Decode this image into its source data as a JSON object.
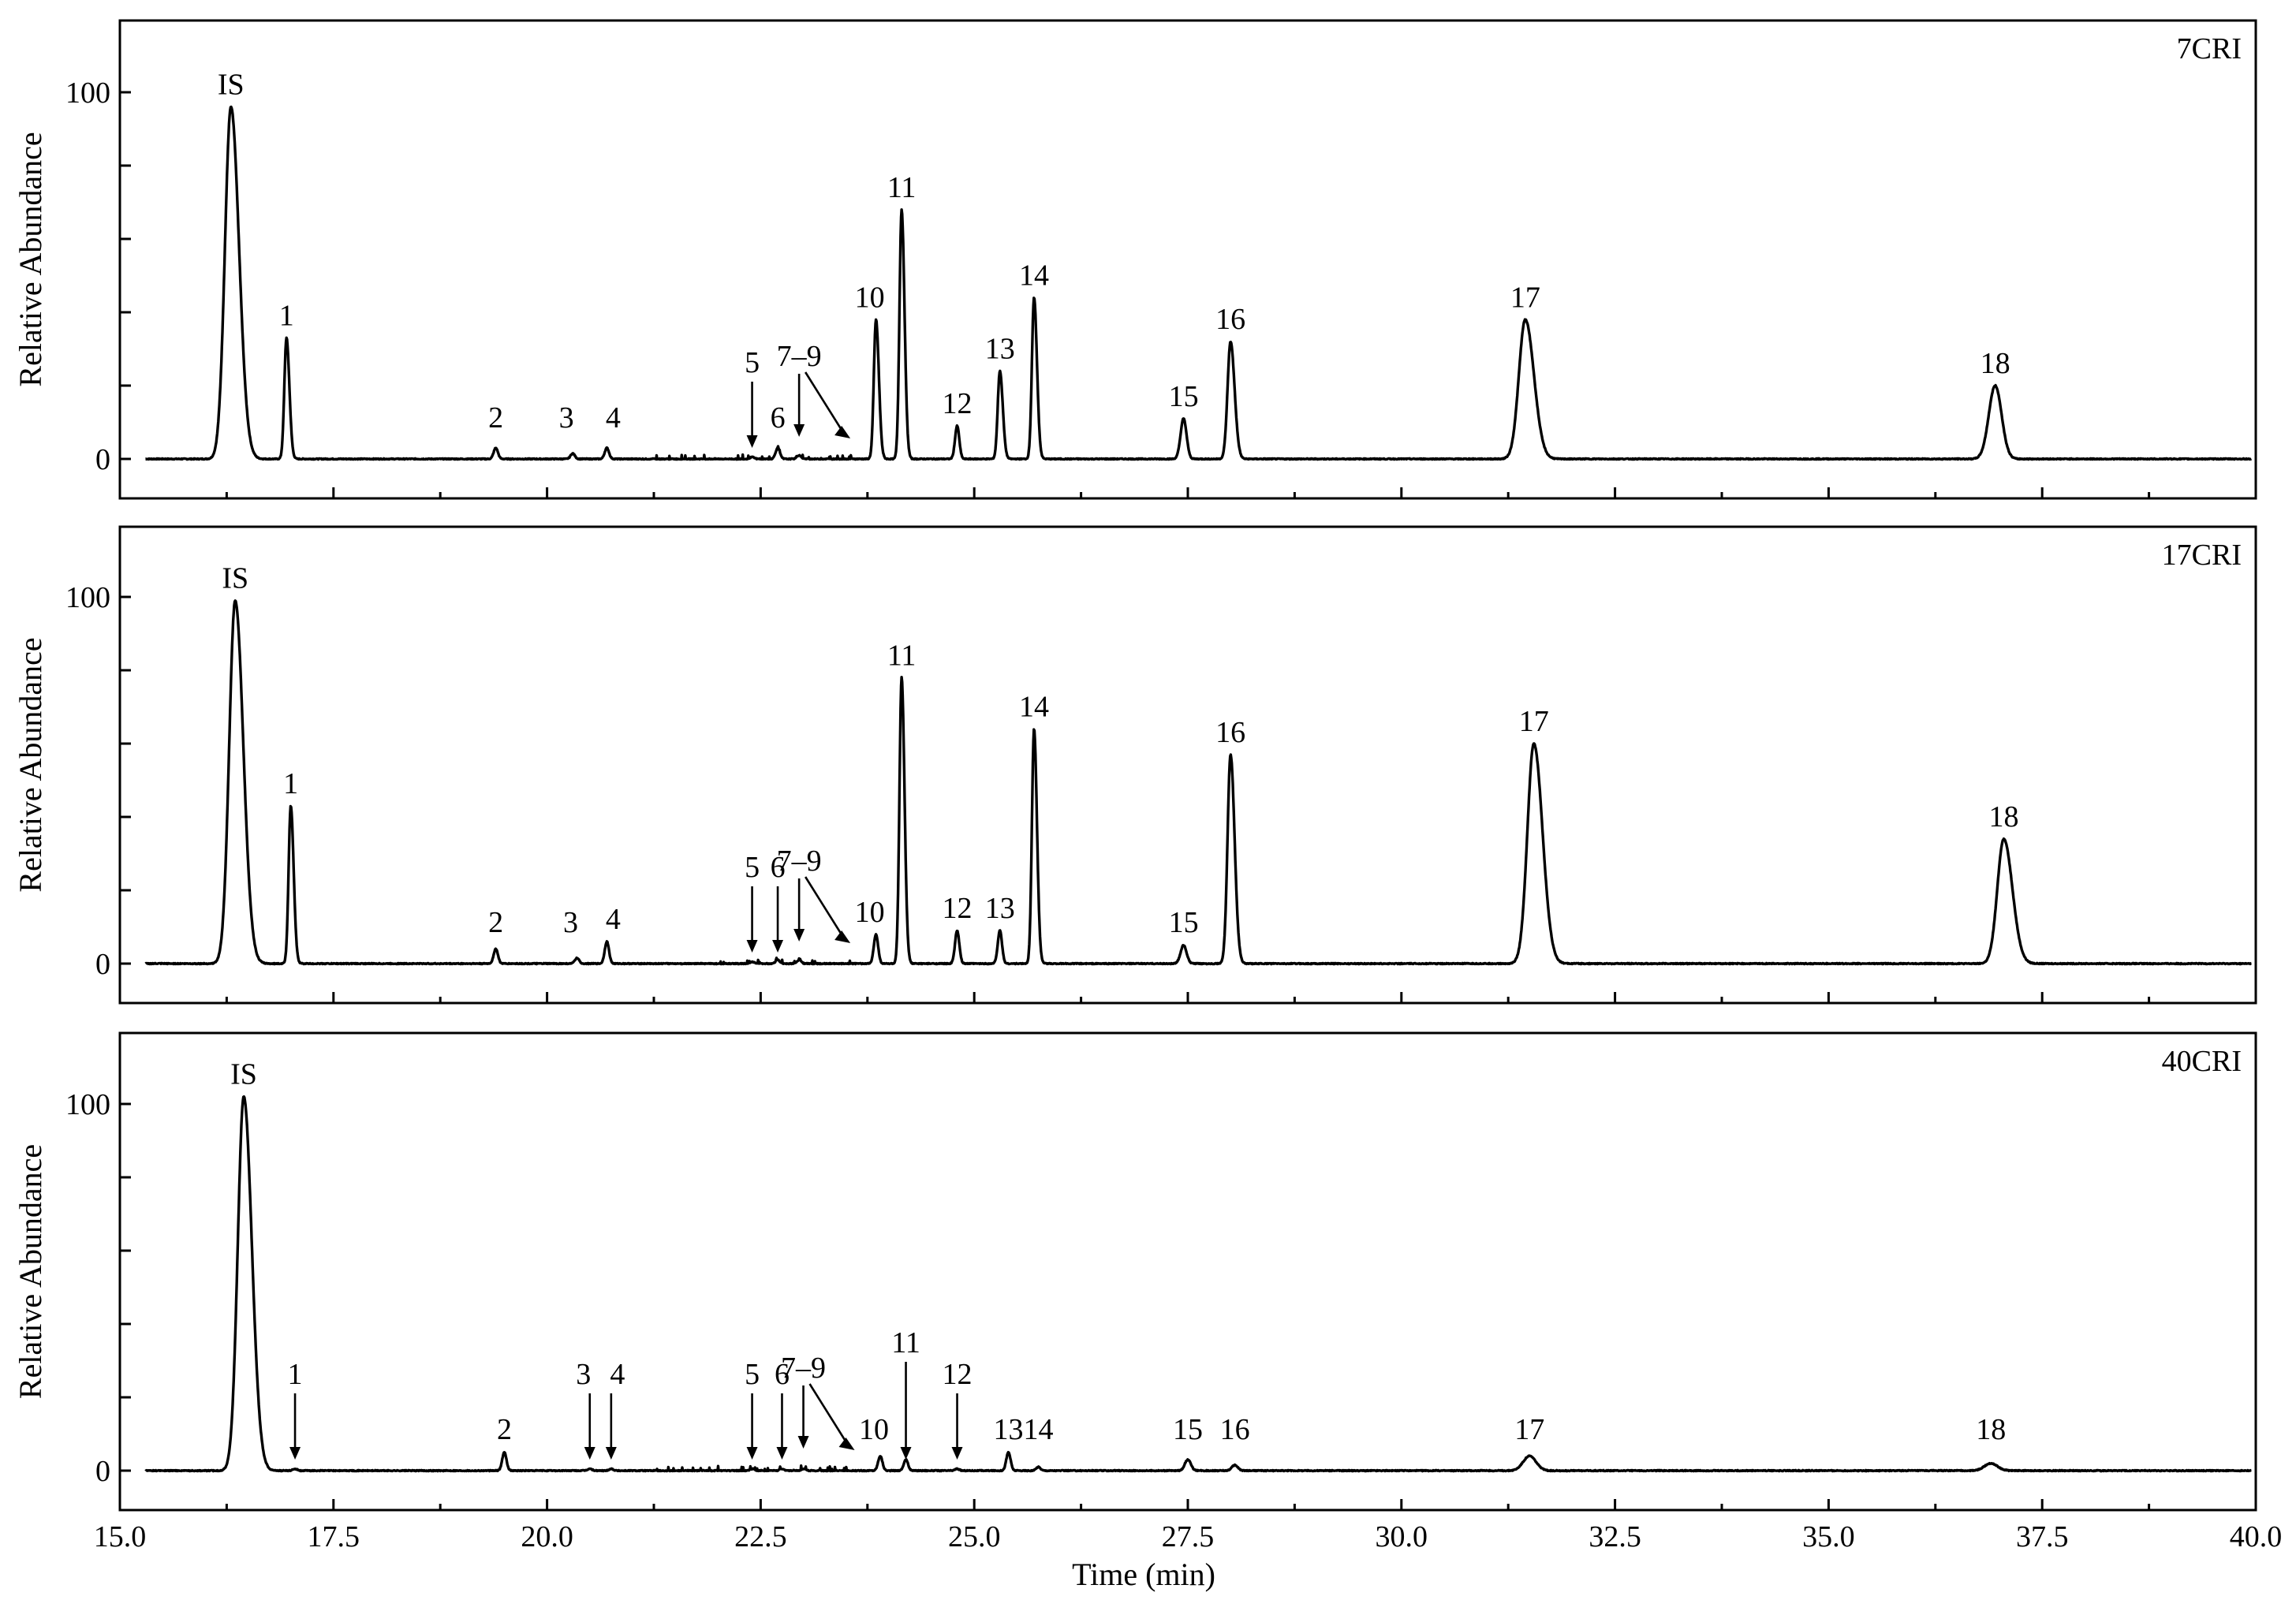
{
  "chart_data": {
    "type": "line",
    "x": {
      "label": "Time (min)",
      "range": [
        15.0,
        40.0
      ],
      "ticks": [
        "15.0",
        "17.5",
        "20.0",
        "22.5",
        "25.0",
        "27.5",
        "30.0",
        "32.5",
        "35.0",
        "37.5",
        "40.0"
      ]
    },
    "y": {
      "label": "Relative Abundance",
      "range": [
        0,
        120
      ],
      "ticks": [
        "0",
        "100"
      ]
    },
    "panels": [
      {
        "name": "7CRI",
        "peaks": [
          {
            "label": "IS",
            "rt": 16.3,
            "height": 96
          },
          {
            "label": "1",
            "rt": 16.95,
            "height": 33
          },
          {
            "label": "2",
            "rt": 19.4,
            "height": 3
          },
          {
            "label": "3",
            "rt": 20.3,
            "height": 1.5
          },
          {
            "label": "4",
            "rt": 20.7,
            "height": 3
          },
          {
            "label": "5",
            "rt": 22.4,
            "height": 0.5,
            "arrow": true
          },
          {
            "label": "6",
            "rt": 22.7,
            "height": 3
          },
          {
            "label": "7–9",
            "rt": 22.95,
            "height": 1,
            "arrow": true
          },
          {
            "label": "10",
            "rt": 23.85,
            "height": 38
          },
          {
            "label": "11",
            "rt": 24.15,
            "height": 68
          },
          {
            "label": "12",
            "rt": 24.8,
            "height": 9
          },
          {
            "label": "13",
            "rt": 25.3,
            "height": 24
          },
          {
            "label": "14",
            "rt": 25.7,
            "height": 44
          },
          {
            "label": "15",
            "rt": 27.45,
            "height": 11
          },
          {
            "label": "16",
            "rt": 28.0,
            "height": 32
          },
          {
            "label": "17",
            "rt": 31.45,
            "height": 38
          },
          {
            "label": "18",
            "rt": 36.95,
            "height": 20
          }
        ]
      },
      {
        "name": "17CRI",
        "peaks": [
          {
            "label": "IS",
            "rt": 16.35,
            "height": 99
          },
          {
            "label": "1",
            "rt": 17.0,
            "height": 43
          },
          {
            "label": "2",
            "rt": 19.4,
            "height": 4
          },
          {
            "label": "3",
            "rt": 20.35,
            "height": 1.5
          },
          {
            "label": "4",
            "rt": 20.7,
            "height": 6
          },
          {
            "label": "5",
            "rt": 22.4,
            "height": 0.5,
            "arrow": true
          },
          {
            "label": "6",
            "rt": 22.7,
            "height": 1,
            "arrow": true
          },
          {
            "label": "7–9",
            "rt": 22.95,
            "height": 1,
            "arrow": true
          },
          {
            "label": "10",
            "rt": 23.85,
            "height": 8
          },
          {
            "label": "11",
            "rt": 24.15,
            "height": 78
          },
          {
            "label": "12",
            "rt": 24.8,
            "height": 9
          },
          {
            "label": "13",
            "rt": 25.3,
            "height": 9
          },
          {
            "label": "14",
            "rt": 25.7,
            "height": 64
          },
          {
            "label": "15",
            "rt": 27.45,
            "height": 5
          },
          {
            "label": "16",
            "rt": 28.0,
            "height": 57
          },
          {
            "label": "17",
            "rt": 31.55,
            "height": 60
          },
          {
            "label": "18",
            "rt": 37.05,
            "height": 34
          }
        ]
      },
      {
        "name": "40CRI",
        "peaks": [
          {
            "label": "IS",
            "rt": 16.45,
            "height": 102
          },
          {
            "label": "1",
            "rt": 17.05,
            "height": 0.5,
            "arrow": true
          },
          {
            "label": "2",
            "rt": 19.5,
            "height": 5
          },
          {
            "label": "3",
            "rt": 20.5,
            "height": 0.5,
            "arrow": true
          },
          {
            "label": "4",
            "rt": 20.75,
            "height": 0.5,
            "arrow": true
          },
          {
            "label": "5",
            "rt": 22.4,
            "height": 0.5,
            "arrow": true
          },
          {
            "label": "6",
            "rt": 22.75,
            "height": 0.5,
            "arrow": true
          },
          {
            "label": "7–9",
            "rt": 23.0,
            "height": 0.5,
            "arrow": true
          },
          {
            "label": "10",
            "rt": 23.9,
            "height": 4
          },
          {
            "label": "11",
            "rt": 24.2,
            "height": 3,
            "arrow": true
          },
          {
            "label": "12",
            "rt": 24.8,
            "height": 0.5,
            "arrow": true
          },
          {
            "label": "13",
            "rt": 25.4,
            "height": 5
          },
          {
            "label": "14",
            "rt": 25.75,
            "height": 1
          },
          {
            "label": "15",
            "rt": 27.5,
            "height": 3
          },
          {
            "label": "16",
            "rt": 28.05,
            "height": 1.5
          },
          {
            "label": "17",
            "rt": 31.5,
            "height": 4
          },
          {
            "label": "18",
            "rt": 36.9,
            "height": 2
          }
        ]
      }
    ]
  }
}
